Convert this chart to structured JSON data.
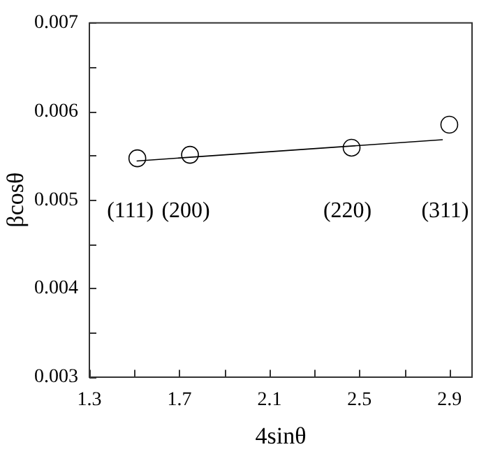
{
  "chart_data": {
    "type": "scatter",
    "xlabel": "4sinθ",
    "ylabel": "βcosθ",
    "series": [
      {
        "color": "#000000",
        "x": [
          1.513,
          1.747,
          2.465,
          2.899
        ],
        "values": [
          0.00547,
          0.00551,
          0.00559,
          0.00585
        ],
        "marker": "circle"
      },
      {
        "type": "line",
        "color": "#000000",
        "x": [
          1.51,
          2.87
        ],
        "values": [
          0.00544,
          0.00568
        ],
        "marker": "none"
      }
    ],
    "xlim": [
      1.3,
      3.0
    ],
    "xticks": [
      1.3,
      {
        "value": 1.5,
        "label": null
      },
      1.7,
      {
        "value": 1.9,
        "label": null
      },
      2.1,
      {
        "value": 2.3,
        "label": null
      },
      2.5,
      {
        "value": 2.7,
        "label": null
      },
      2.9
    ],
    "ylim": [
      0.003,
      0.007
    ],
    "yticks": [
      0.003,
      {
        "value": 0.0035,
        "label": null
      },
      0.004,
      {
        "value": 0.0045,
        "label": null
      },
      0.005,
      {
        "value": 0.0055,
        "label": null
      },
      0.006,
      {
        "value": 0.0065,
        "label": null
      },
      0.007
    ],
    "annotations": [
      "(111)",
      "(200)",
      "(220)",
      "(311)"
    ],
    "grid": false,
    "legend": false
  }
}
